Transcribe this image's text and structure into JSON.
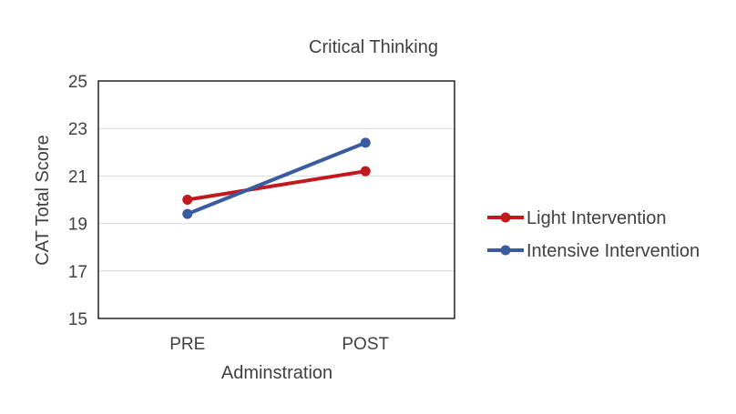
{
  "chart_data": {
    "type": "line",
    "title": "Critical Thinking",
    "xlabel": "Adminstration",
    "ylabel": "CAT Total Score",
    "categories": [
      "PRE",
      "POST"
    ],
    "ylim": [
      15,
      25
    ],
    "yticks": [
      "15",
      "17",
      "19",
      "21",
      "23",
      "25"
    ],
    "grid": true,
    "legend_position": "right",
    "series": [
      {
        "name": "Light Intervention",
        "values": [
          20.0,
          21.2
        ],
        "color": "#c0191e"
      },
      {
        "name": "Intensive Intervention",
        "values": [
          19.4,
          22.4
        ],
        "color": "#3a5ba0"
      }
    ]
  }
}
